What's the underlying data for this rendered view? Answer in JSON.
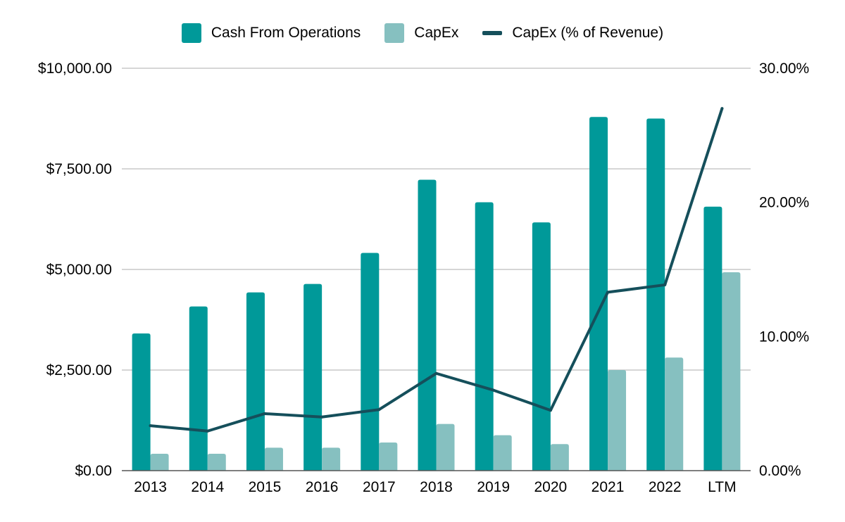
{
  "chart_data": {
    "type": "bar",
    "categories": [
      "2013",
      "2014",
      "2015",
      "2016",
      "2017",
      "2018",
      "2019",
      "2020",
      "2021",
      "2022",
      "LTM"
    ],
    "series": [
      {
        "name": "Cash From Operations",
        "type": "bar",
        "axis": "left",
        "color": "#009999",
        "values": [
          3410,
          4080,
          4430,
          4640,
          5410,
          7230,
          6670,
          6170,
          8790,
          8750,
          6560
        ]
      },
      {
        "name": "CapEx",
        "type": "bar",
        "axis": "left",
        "color": "#86c0c0",
        "values": [
          420,
          420,
          570,
          570,
          700,
          1160,
          880,
          660,
          2500,
          2810,
          4930
        ]
      },
      {
        "name": "CapEx (% of Revenue)",
        "type": "line",
        "axis": "right",
        "color": "#154f5b",
        "values": [
          3.35,
          2.95,
          4.25,
          4.0,
          4.55,
          7.25,
          6.0,
          4.5,
          13.3,
          13.85,
          27.0
        ]
      }
    ],
    "y_left": {
      "lim": [
        0,
        10000
      ],
      "ticks": [
        0,
        2500,
        5000,
        7500,
        10000
      ],
      "tick_labels": [
        "$0.00",
        "$2,500.00",
        "$5,000.00",
        "$7,500.00",
        "$10,000.00"
      ]
    },
    "y_right": {
      "lim": [
        0,
        30
      ],
      "ticks": [
        0,
        10,
        20,
        30
      ],
      "tick_labels": [
        "0.00%",
        "10.00%",
        "20.00%",
        "30.00%"
      ]
    },
    "grid": true,
    "legend_position": "top-center"
  },
  "legend": {
    "items": [
      {
        "label": "Cash From Operations",
        "color": "#009999",
        "kind": "box"
      },
      {
        "label": "CapEx",
        "color": "#86c0c0",
        "kind": "box"
      },
      {
        "label": "CapEx (% of Revenue)",
        "color": "#154f5b",
        "kind": "line"
      }
    ]
  },
  "colors": {
    "grid": "#c8c8c8",
    "axis": "#555555"
  }
}
